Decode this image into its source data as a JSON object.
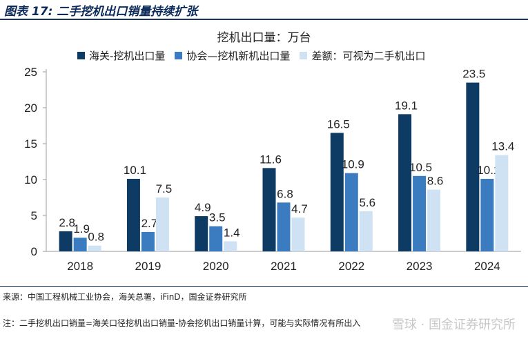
{
  "figure": {
    "title": "图表 17: 二手挖机出口销量持续扩张",
    "source": "来源：中国工程机械工业协会，海关总署，iFinD，国金证券研究所",
    "note": "注：二手挖机出口销量=海关口径挖机出口销量-协会挖机出口销量计算，可能与实际情况有所出入",
    "watermark": "雪球 · 国金证券研究所"
  },
  "colors": {
    "series1": "#0d3b63",
    "series2": "#3b7cc0",
    "series3": "#cfe2f3",
    "title_rule": "#16365f"
  },
  "chart_data": {
    "type": "bar",
    "title": "挖机出口量：万台",
    "categories": [
      "2018",
      "2019",
      "2020",
      "2021",
      "2022",
      "2023",
      "2024"
    ],
    "series": [
      {
        "name": "海关-挖机出口量",
        "values": [
          2.8,
          10.1,
          4.9,
          11.6,
          16.5,
          19.1,
          23.5
        ]
      },
      {
        "name": "协会—挖机新机出口量",
        "values": [
          1.9,
          2.7,
          3.5,
          6.8,
          10.9,
          10.5,
          10.1
        ]
      },
      {
        "name": "差额：可视为二手机出口",
        "values": [
          0.8,
          7.5,
          1.4,
          4.7,
          5.6,
          8.6,
          13.4
        ]
      }
    ],
    "ylim": [
      0,
      25
    ],
    "yticks": [
      "0",
      "5",
      "10",
      "15",
      "20",
      "25"
    ],
    "grid": false,
    "legend_position": "top"
  }
}
